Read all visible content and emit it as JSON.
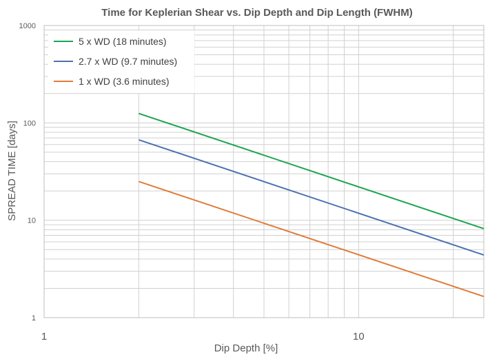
{
  "chart_data": {
    "type": "line",
    "title": "Time for Keplerian Shear vs. Dip Depth and Dip Length (FWHM)",
    "xlabel": "Dip Depth [%]",
    "ylabel": "SPREAD TIME [days]",
    "x_scale": "log",
    "y_scale": "log",
    "xlim": [
      1,
      25
    ],
    "ylim": [
      1,
      1000
    ],
    "x_ticks": [
      1,
      10
    ],
    "x_tick_labels": [
      "1",
      "10"
    ],
    "y_ticks": [
      1,
      10,
      100,
      1000
    ],
    "y_tick_labels": [
      "1",
      "10",
      "100",
      "1000"
    ],
    "grid": true,
    "legend_position": "top-left",
    "series": [
      {
        "name": "5 x WD (18 minutes)",
        "color": "#1aa450",
        "x": [
          2,
          25
        ],
        "y": [
          125,
          8.2
        ]
      },
      {
        "name": "2.7 x WD (9.7 minutes)",
        "color": "#4a72b0",
        "x": [
          2,
          25
        ],
        "y": [
          67,
          4.4
        ]
      },
      {
        "name": "1 x WD (3.6 minutes)",
        "color": "#e07b39",
        "x": [
          2,
          25
        ],
        "y": [
          25,
          1.65
        ]
      }
    ]
  }
}
